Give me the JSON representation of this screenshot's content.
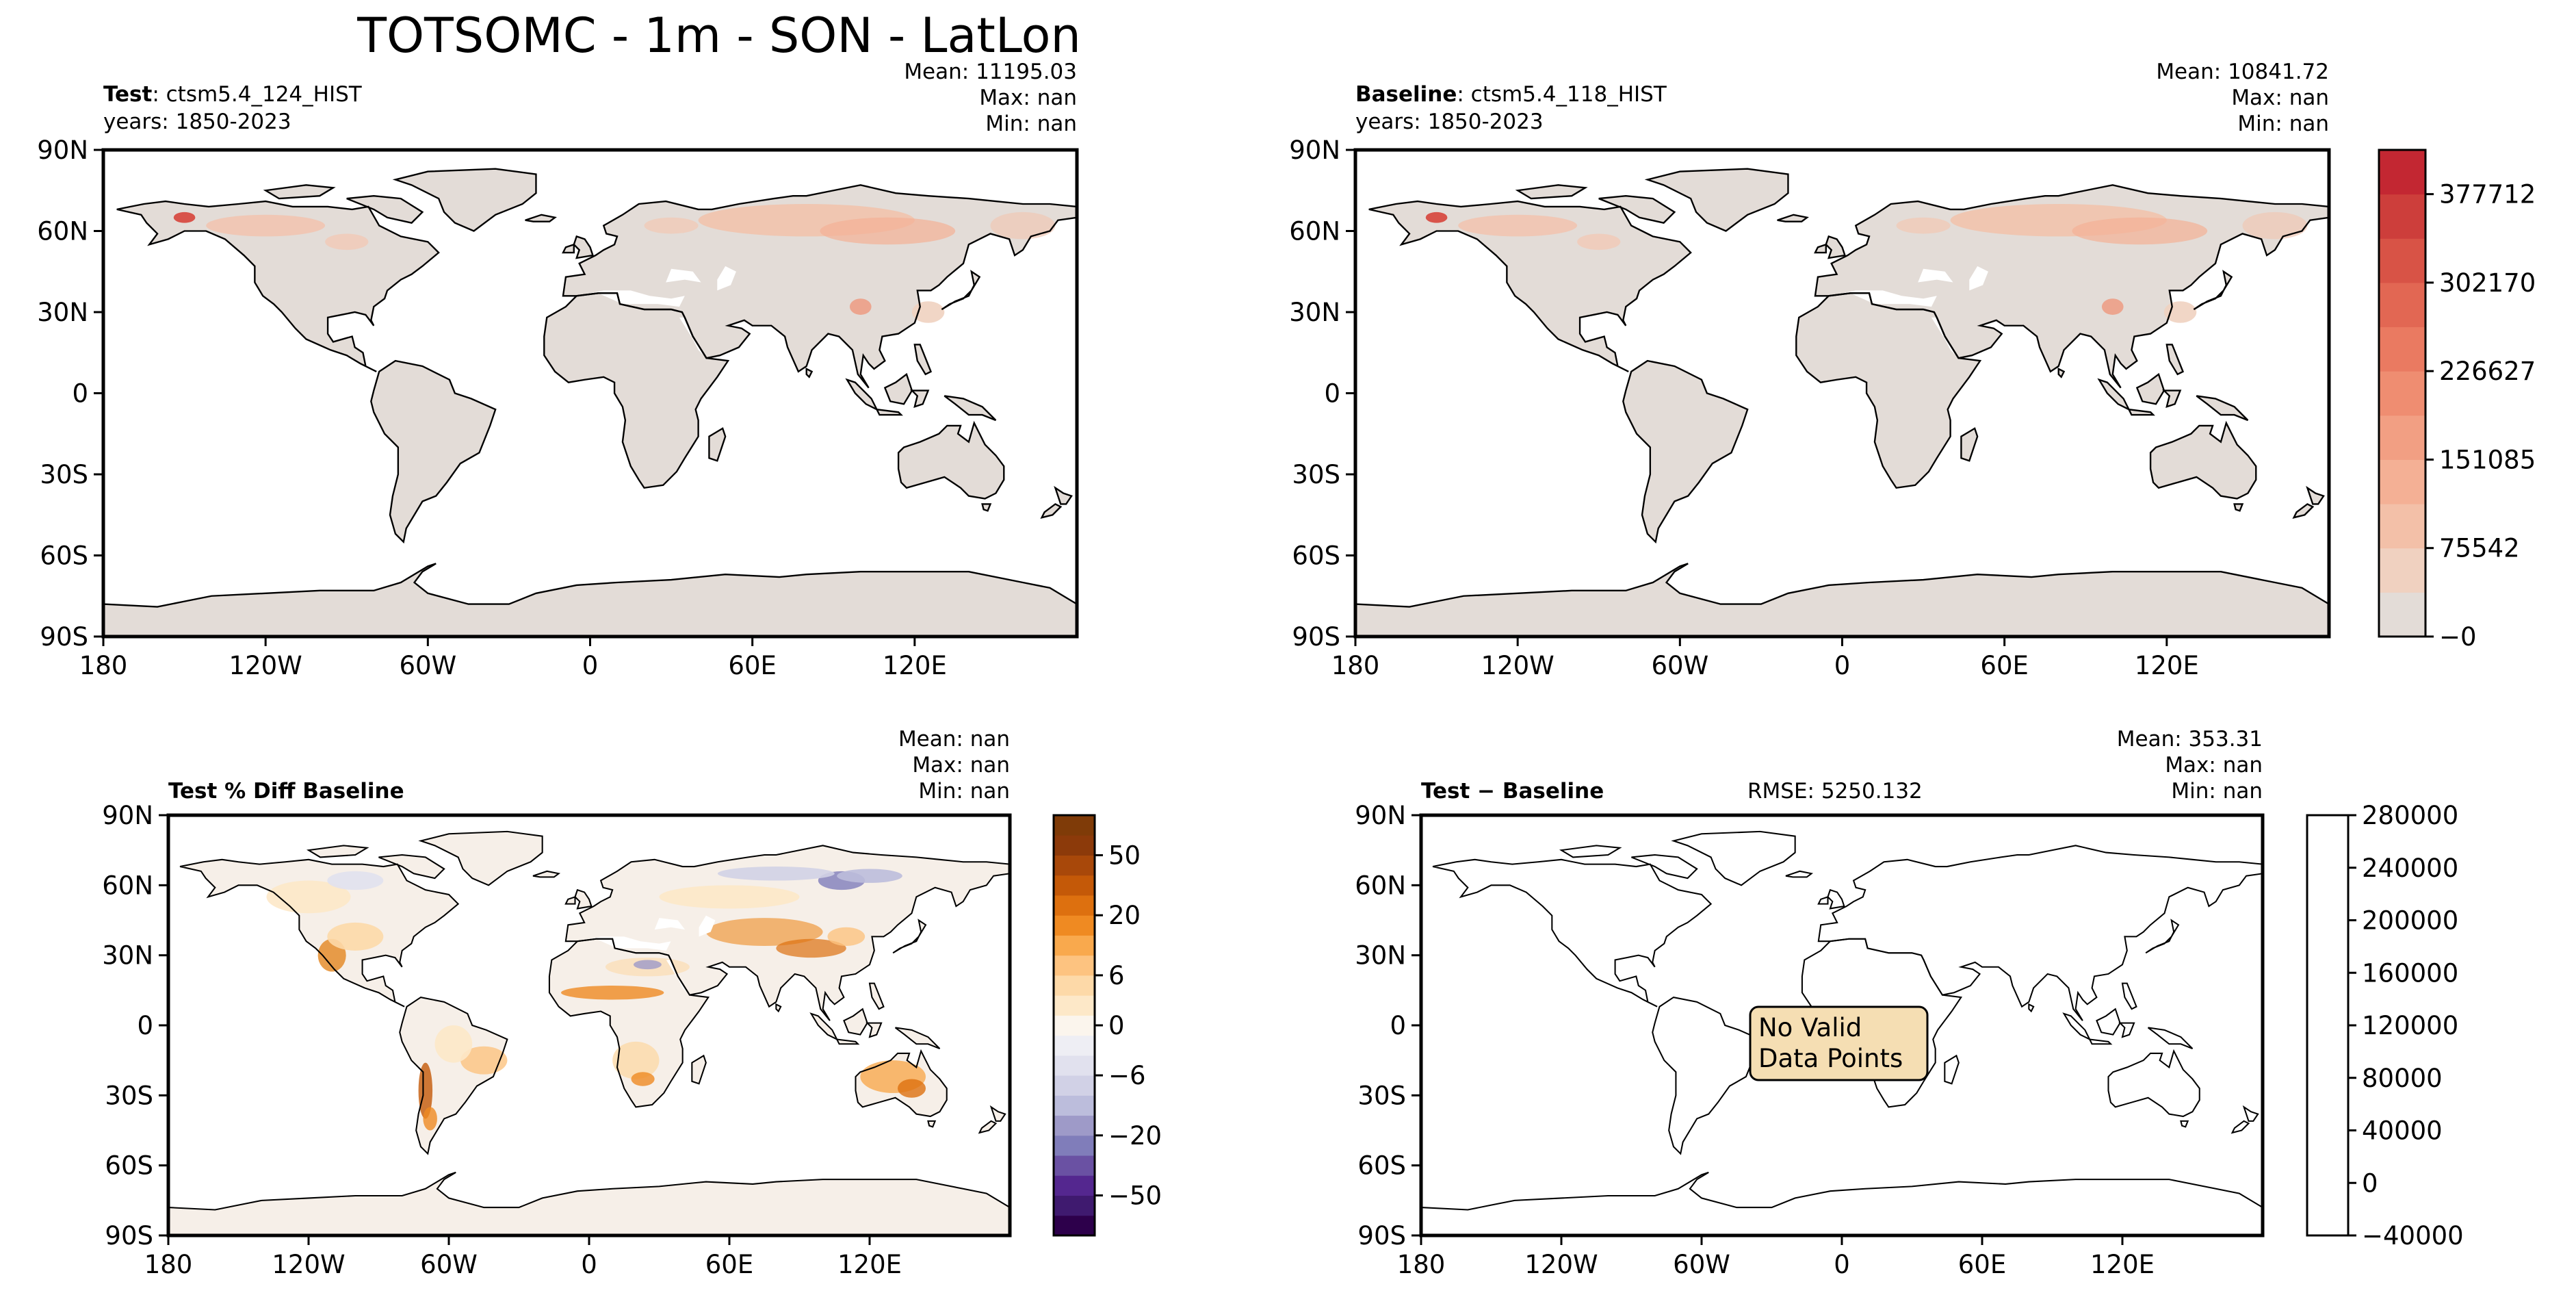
{
  "title": "TOTSOMC - 1m - SON - LatLon",
  "lat_ticks": [
    "90N",
    "60N",
    "30N",
    "0",
    "30S",
    "60S",
    "90S"
  ],
  "lon_ticks": [
    "180",
    "120W",
    "60W",
    "0",
    "60E",
    "120E"
  ],
  "panels": {
    "test": {
      "label_bold": "Test",
      "label_rest": ": ctsm5.4_124_HIST",
      "years": "years: 1850-2023",
      "stats": [
        {
          "label": "Mean:",
          "value": "11195.03"
        },
        {
          "label": "Max:",
          "value": "nan"
        },
        {
          "label": "Min:",
          "value": "nan"
        }
      ]
    },
    "baseline": {
      "label_bold": "Baseline",
      "label_rest": ": ctsm5.4_118_HIST",
      "years": "years: 1850-2023",
      "stats": [
        {
          "label": "Mean:",
          "value": "10841.72"
        },
        {
          "label": "Max:",
          "value": "nan"
        },
        {
          "label": "Min:",
          "value": "nan"
        }
      ]
    },
    "pct_diff": {
      "label_bold": "Test % Diff Baseline",
      "stats": [
        {
          "label": "Mean:",
          "value": "nan"
        },
        {
          "label": "Max:",
          "value": "nan"
        },
        {
          "label": "Min:",
          "value": "nan"
        }
      ]
    },
    "diff": {
      "label_bold": "Test − Baseline",
      "rmse": "RMSE: 5250.132",
      "stats": [
        {
          "label": "Mean:",
          "value": "353.31"
        },
        {
          "label": "Max:",
          "value": "nan"
        },
        {
          "label": "Min:",
          "value": "nan"
        }
      ],
      "message": [
        "No Valid",
        "Data Points"
      ]
    }
  },
  "colorbars": {
    "abs": {
      "ticks": [
        "−0",
        "75542",
        "151085",
        "226627",
        "302170",
        "377712"
      ],
      "colors": [
        "#e3dcd7",
        "#f0d1c0",
        "#f3c0a8",
        "#f4b095",
        "#f29f83",
        "#ef8d71",
        "#ea7a61",
        "#e26753",
        "#d85346",
        "#cd3e3b",
        "#c32732"
      ]
    },
    "pct": {
      "ticks": [
        "−50",
        "−20",
        "−6",
        "0",
        "6",
        "20",
        "50"
      ],
      "colors": [
        "#2d004b",
        "#3f1a6f",
        "#54278f",
        "#6a51a3",
        "#807dba",
        "#9e9ac8",
        "#bcbddc",
        "#d1d1e6",
        "#e1e1ee",
        "#eeeef4",
        "#fbf5ed",
        "#fde8c8",
        "#fdd9a8",
        "#fdc380",
        "#f9a94d",
        "#ef8a22",
        "#dd700f",
        "#c45908",
        "#a8480a",
        "#8c3a0a",
        "#7f3b08"
      ]
    },
    "diff": {
      "ticks": [
        "−40000",
        "0",
        "40000",
        "80000",
        "120000",
        "160000",
        "200000",
        "240000",
        "280000"
      ]
    }
  },
  "chart_data": [
    {
      "type": "heatmap",
      "title": "Test: ctsm5.4_124_HIST",
      "subtitle": "years: 1850-2023",
      "xlabel": "",
      "ylabel": "",
      "xlim": [
        -180,
        180
      ],
      "ylim": [
        -90,
        90
      ],
      "grid": false,
      "stats": {
        "mean": 11195.03,
        "max": "nan",
        "min": "nan"
      },
      "colorbar_range": [
        0,
        415000
      ],
      "shared_colorbar": true
    },
    {
      "type": "heatmap",
      "title": "Baseline: ctsm5.4_118_HIST",
      "subtitle": "years: 1850-2023",
      "xlabel": "",
      "ylabel": "",
      "xlim": [
        -180,
        180
      ],
      "ylim": [
        -90,
        90
      ],
      "grid": false,
      "stats": {
        "mean": 10841.72,
        "max": "nan",
        "min": "nan"
      },
      "colorbar_ticks": [
        0,
        75542,
        151085,
        226627,
        302170,
        377712
      ]
    },
    {
      "type": "heatmap",
      "title": "Test % Diff Baseline",
      "xlim": [
        -180,
        180
      ],
      "ylim": [
        -90,
        90
      ],
      "grid": false,
      "stats": {
        "mean": "nan",
        "max": "nan",
        "min": "nan"
      },
      "colorbar_ticks": [
        -50,
        -20,
        -6,
        0,
        6,
        20,
        50
      ]
    },
    {
      "type": "heatmap",
      "title": "Test − Baseline",
      "xlim": [
        -180,
        180
      ],
      "ylim": [
        -90,
        90
      ],
      "grid": false,
      "rmse": 5250.132,
      "stats": {
        "mean": 353.31,
        "max": "nan",
        "min": "nan"
      },
      "colorbar_ticks": [
        -40000,
        0,
        40000,
        80000,
        120000,
        160000,
        200000,
        240000,
        280000
      ],
      "annotation": "No Valid Data Points"
    }
  ]
}
